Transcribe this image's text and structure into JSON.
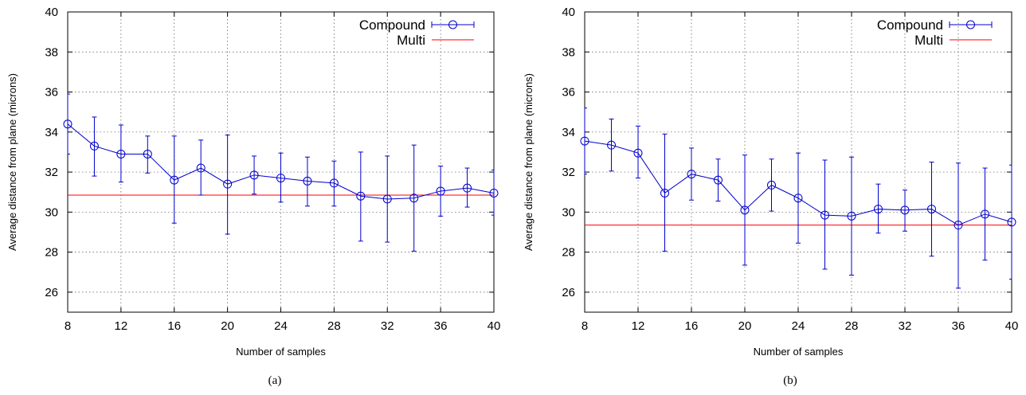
{
  "chart_data": [
    {
      "type": "line",
      "caption": "(a)",
      "xlabel": "Number of samples",
      "ylabel": "Average distance from plane (microns)",
      "xlim": [
        8,
        40
      ],
      "ylim": [
        25,
        40
      ],
      "xticks": [
        8,
        12,
        16,
        20,
        24,
        28,
        32,
        36,
        40
      ],
      "yticks": [
        26,
        28,
        30,
        32,
        34,
        36,
        38,
        40
      ],
      "grid": true,
      "legend_position": "top-right",
      "series": [
        {
          "name": "Compound",
          "color": "#0000cc",
          "style": "line-with-circle-markers-and-errorbars",
          "x": [
            8,
            10,
            12,
            14,
            16,
            18,
            20,
            22,
            24,
            26,
            28,
            30,
            32,
            34,
            36,
            38,
            40
          ],
          "y": [
            34.4,
            33.3,
            32.9,
            32.9,
            31.6,
            32.2,
            31.4,
            31.85,
            31.7,
            31.55,
            31.45,
            30.8,
            30.65,
            30.7,
            31.05,
            31.2,
            30.95
          ],
          "err_low": [
            32.9,
            31.8,
            31.5,
            31.95,
            29.45,
            30.85,
            28.9,
            30.9,
            30.5,
            30.3,
            30.3,
            28.55,
            28.5,
            28.05,
            29.8,
            30.25,
            29.85
          ],
          "err_high": [
            35.9,
            34.75,
            34.35,
            33.8,
            33.8,
            33.6,
            33.85,
            32.8,
            32.95,
            32.75,
            32.55,
            33.0,
            32.8,
            33.35,
            32.3,
            32.2,
            32.1
          ]
        },
        {
          "name": "Multi",
          "color": "#ff0000",
          "style": "horizontal-line",
          "y": 30.85
        }
      ]
    },
    {
      "type": "line",
      "caption": "(b)",
      "xlabel": "Number of samples",
      "ylabel": "Average distance from plane (microns)",
      "xlim": [
        8,
        40
      ],
      "ylim": [
        25,
        40
      ],
      "xticks": [
        8,
        12,
        16,
        20,
        24,
        28,
        32,
        36,
        40
      ],
      "yticks": [
        26,
        28,
        30,
        32,
        34,
        36,
        38,
        40
      ],
      "grid": true,
      "legend_position": "top-right",
      "series": [
        {
          "name": "Compound",
          "color": "#0000cc",
          "style": "line-with-circle-markers-and-errorbars",
          "x": [
            8,
            10,
            12,
            14,
            16,
            18,
            20,
            22,
            24,
            26,
            28,
            30,
            32,
            34,
            36,
            38,
            40
          ],
          "y": [
            33.55,
            33.35,
            32.95,
            30.95,
            31.9,
            31.6,
            30.1,
            31.35,
            30.7,
            29.85,
            29.8,
            30.15,
            30.1,
            30.15,
            29.35,
            29.9,
            29.5
          ],
          "err_low": [
            31.9,
            32.05,
            31.7,
            28.05,
            30.6,
            30.55,
            27.35,
            30.05,
            28.45,
            27.15,
            26.85,
            28.95,
            29.05,
            27.8,
            26.2,
            27.6,
            26.65
          ],
          "err_high": [
            35.2,
            34.65,
            34.3,
            33.9,
            33.2,
            32.65,
            32.85,
            32.65,
            32.95,
            32.6,
            32.75,
            31.4,
            31.1,
            32.5,
            32.45,
            32.2,
            32.35
          ]
        },
        {
          "name": "Multi",
          "color": "#ff0000",
          "style": "horizontal-line",
          "y": 29.35
        }
      ]
    }
  ]
}
